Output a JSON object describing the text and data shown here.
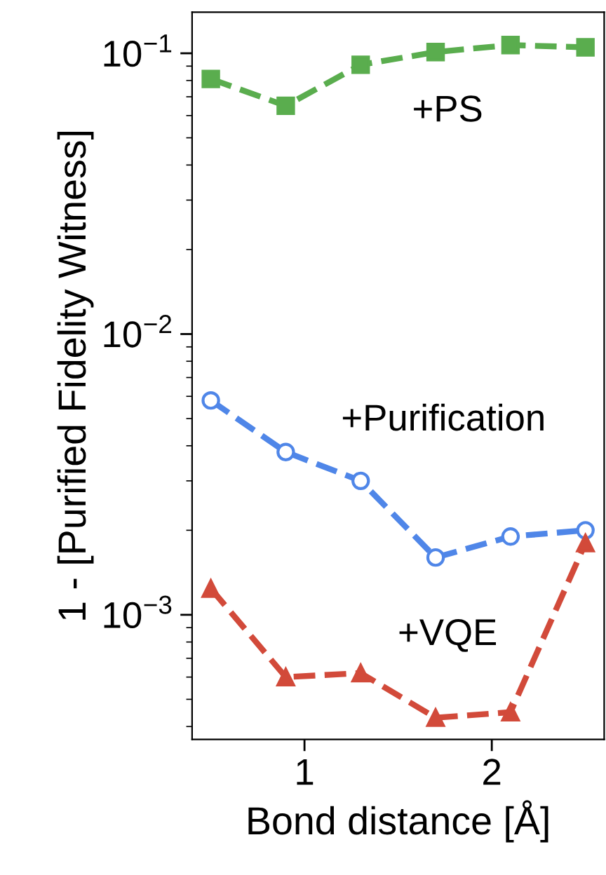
{
  "chart_data": {
    "type": "line",
    "xlabel": "Bond distance [Å]",
    "ylabel": "1 - [Purified Fidelity Witness]",
    "x": [
      0.5,
      0.9,
      1.3,
      1.7,
      2.1,
      2.5
    ],
    "series": [
      {
        "name": "+PS",
        "color": "#5aad4e",
        "marker": "square",
        "values": [
          0.081,
          0.065,
          0.091,
          0.101,
          0.107,
          0.105
        ]
      },
      {
        "name": "+Purification",
        "color": "#4f86e8",
        "marker": "circle",
        "values": [
          0.0058,
          0.0038,
          0.003,
          0.0016,
          0.0019,
          0.002
        ]
      },
      {
        "name": "+VQE",
        "color": "#d24a3a",
        "marker": "triangle",
        "values": [
          0.00124,
          0.0006,
          0.00062,
          0.00043,
          0.00045,
          0.0018
        ]
      }
    ],
    "line_style": "dashed",
    "log": "y",
    "grid": false,
    "legend": false,
    "xlim": [
      0.4,
      2.6
    ],
    "xticks": [
      1,
      2
    ],
    "ylim": [
      0.00036,
      0.14
    ],
    "yticks": [
      {
        "value": 0.001,
        "label": "10$^{−3}$"
      },
      {
        "value": 0.01,
        "label": "10$^{−2}$"
      },
      {
        "value": 0.1,
        "label": "10$^{−1}$"
      }
    ]
  }
}
